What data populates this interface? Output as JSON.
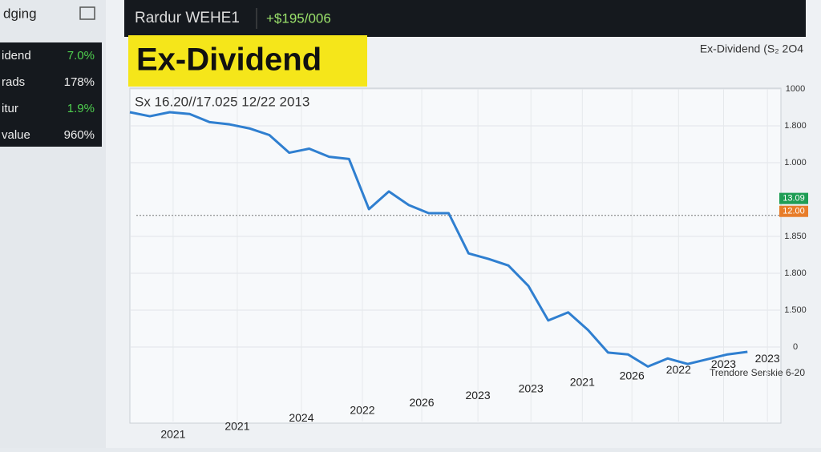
{
  "sidebar": {
    "title": "dging",
    "rows": [
      [
        "idend",
        "7.0%"
      ],
      [
        "rads",
        "178%"
      ],
      [
        "itur",
        "1.9%"
      ],
      [
        "value",
        "960%"
      ]
    ]
  },
  "topbar": {
    "ticker": "Rardur WEHE1",
    "change": "+$195/006"
  },
  "badge": "Ex-Dividend",
  "chart_data": {
    "type": "line",
    "title": "Ex-Dividend (S₂ 2O4",
    "subtitle": "Sx 16.20//17.025 12/22 2013",
    "xlabel": "Trendore Serskie 6-20",
    "x": [
      0,
      1,
      2,
      3,
      4,
      5,
      6,
      7,
      8,
      9,
      10,
      11,
      12,
      13,
      14,
      15,
      16,
      17,
      18,
      19,
      20,
      21,
      22,
      23,
      24,
      25,
      26,
      27,
      28,
      29,
      30,
      31
    ],
    "series": [
      {
        "name": "Ex-Dividend",
        "color": "#2f7fd0",
        "values": [
          6.37,
          6.26,
          6.37,
          6.32,
          6.1,
          6.04,
          5.93,
          5.75,
          5.27,
          5.38,
          5.16,
          5.1,
          3.74,
          4.22,
          3.85,
          3.63,
          3.63,
          2.54,
          2.39,
          2.21,
          1.66,
          0.72,
          0.94,
          0.46,
          -0.15,
          -0.2,
          -0.53,
          -0.31,
          -0.46,
          -0.33,
          -0.2,
          -0.13
        ]
      }
    ],
    "xlim": [
      0,
      33
    ],
    "xticks": [
      {
        "value": 2.17,
        "label": "2021"
      },
      {
        "value": 5.39,
        "label": "2021"
      },
      {
        "value": 8.61,
        "label": "2024"
      },
      {
        "value": 11.67,
        "label": "2022"
      },
      {
        "value": 14.65,
        "label": "2026"
      },
      {
        "value": 17.47,
        "label": "2023"
      },
      {
        "value": 20.13,
        "label": "2023"
      },
      {
        "value": 22.71,
        "label": "2021"
      },
      {
        "value": 25.2,
        "label": "2026"
      },
      {
        "value": 27.54,
        "label": "2022"
      },
      {
        "value": 29.8,
        "label": "2023"
      },
      {
        "value": 32,
        "label": "2023"
      }
    ],
    "ylim": [
      -2,
      7
    ],
    "yticks": [
      {
        "value": 7,
        "label": "1000"
      },
      {
        "value": 6,
        "label": "1.800"
      },
      {
        "value": 5,
        "label": "1.000"
      },
      {
        "value": 3,
        "label": "1.850"
      },
      {
        "value": 2,
        "label": "1.800"
      },
      {
        "value": 1,
        "label": "1.500"
      },
      0
    ],
    "hline": 3.57,
    "price_tags": [
      {
        "value": 4.03,
        "label": "13.09",
        "color": "#1f9d55"
      },
      {
        "value": 3.68,
        "label": "12.00",
        "color": "#e87d2a"
      }
    ],
    "grid": true
  }
}
